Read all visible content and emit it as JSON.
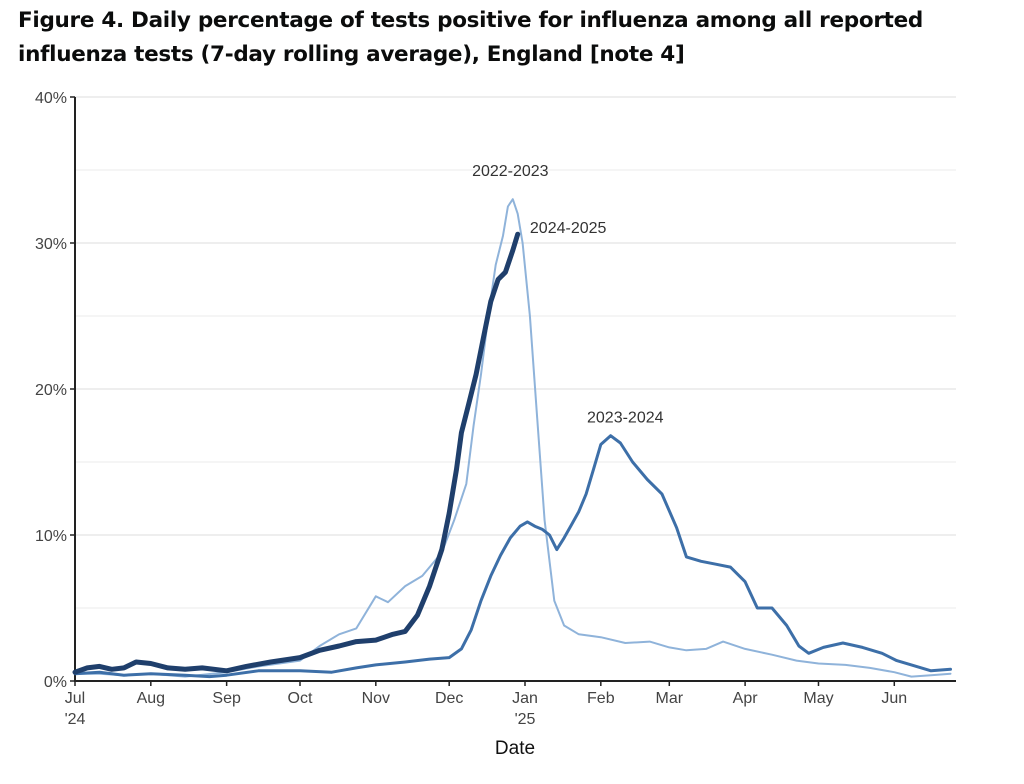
{
  "title": "Figure 4. Daily percentage of tests positive for influenza among all reported influenza tests (7-day rolling average), England [note 4]",
  "chart_data": {
    "type": "line",
    "title": "Figure 4. Daily percentage of tests positive for influenza among all reported influenza tests (7-day rolling average), England [note 4]",
    "xlabel": "Date",
    "ylabel": "",
    "x_unit": "day of season (0 = 1 July)",
    "xlim": [
      0,
      358
    ],
    "ylim": [
      0,
      40
    ],
    "grid": true,
    "legend": "direct labels on lines",
    "y_ticks": [
      {
        "value": 0,
        "label": "0%"
      },
      {
        "value": 10,
        "label": "10%"
      },
      {
        "value": 20,
        "label": "20%"
      },
      {
        "value": 30,
        "label": "30%"
      },
      {
        "value": 40,
        "label": "40%"
      }
    ],
    "y_minor_grid": [
      5,
      15,
      25,
      35
    ],
    "x_ticks": [
      {
        "value": 0,
        "label": "Jul",
        "sub": "'24"
      },
      {
        "value": 31,
        "label": "Aug",
        "sub": ""
      },
      {
        "value": 62,
        "label": "Sep",
        "sub": ""
      },
      {
        "value": 92,
        "label": "Oct",
        "sub": ""
      },
      {
        "value": 123,
        "label": "Nov",
        "sub": ""
      },
      {
        "value": 153,
        "label": "Dec",
        "sub": ""
      },
      {
        "value": 184,
        "label": "Jan",
        "sub": "'25"
      },
      {
        "value": 215,
        "label": "Feb",
        "sub": ""
      },
      {
        "value": 243,
        "label": "Mar",
        "sub": ""
      },
      {
        "value": 274,
        "label": "Apr",
        "sub": ""
      },
      {
        "value": 304,
        "label": "May",
        "sub": ""
      },
      {
        "value": 335,
        "label": "Jun",
        "sub": ""
      }
    ],
    "series": [
      {
        "name": "2022-2023",
        "color": "#8fb3da",
        "label_at": {
          "x": 178,
          "y": 34.6
        },
        "x": [
          0,
          10,
          20,
          31,
          45,
          62,
          75,
          92,
          100,
          108,
          115,
          123,
          128,
          135,
          142,
          150,
          155,
          160,
          163,
          166,
          169,
          172,
          175,
          177,
          179,
          181,
          183,
          186,
          189,
          192,
          196,
          200,
          206,
          215,
          225,
          235,
          243,
          250,
          258,
          265,
          274,
          285,
          295,
          304,
          315,
          325,
          335,
          342,
          350,
          358
        ],
        "values": [
          0.5,
          0.5,
          0.4,
          0.5,
          0.3,
          0.6,
          1.0,
          1.4,
          2.4,
          3.2,
          3.6,
          5.8,
          5.4,
          6.5,
          7.2,
          8.8,
          11.0,
          13.5,
          17.5,
          21.0,
          25.0,
          28.5,
          30.5,
          32.5,
          33.0,
          32.0,
          30.0,
          25.0,
          18.0,
          11.0,
          5.5,
          3.8,
          3.2,
          3.0,
          2.6,
          2.7,
          2.3,
          2.1,
          2.2,
          2.7,
          2.2,
          1.8,
          1.4,
          1.2,
          1.1,
          0.9,
          0.6,
          0.3,
          0.4,
          0.5
        ]
      },
      {
        "name": "2023-2024",
        "color": "#3d6fa8",
        "label_at": {
          "x": 225,
          "y": 17.7
        },
        "x": [
          0,
          10,
          20,
          31,
          45,
          55,
          62,
          75,
          92,
          105,
          115,
          123,
          135,
          145,
          153,
          158,
          162,
          166,
          170,
          174,
          178,
          182,
          185,
          188,
          191,
          194,
          197,
          200,
          203,
          206,
          209,
          212,
          215,
          219,
          223,
          228,
          234,
          240,
          246,
          250,
          256,
          262,
          268,
          274,
          279,
          285,
          291,
          296,
          300,
          306,
          314,
          322,
          330,
          336,
          342,
          350,
          358
        ],
        "values": [
          0.5,
          0.6,
          0.4,
          0.5,
          0.4,
          0.3,
          0.4,
          0.7,
          0.7,
          0.6,
          0.9,
          1.1,
          1.3,
          1.5,
          1.6,
          2.2,
          3.5,
          5.5,
          7.2,
          8.6,
          9.8,
          10.6,
          10.9,
          10.6,
          10.4,
          10.0,
          9.0,
          9.8,
          10.7,
          11.6,
          12.8,
          14.5,
          16.2,
          16.8,
          16.3,
          15.0,
          13.8,
          12.8,
          10.5,
          8.5,
          8.2,
          8.0,
          7.8,
          6.8,
          5.0,
          5.0,
          3.8,
          2.4,
          1.9,
          2.3,
          2.6,
          2.3,
          1.9,
          1.4,
          1.1,
          0.7,
          0.8
        ]
      },
      {
        "name": "2024-2025",
        "color": "#1f3f6c",
        "label_at": {
          "x": 186,
          "y": 30.7
        },
        "x": [
          0,
          5,
          10,
          15,
          20,
          25,
          31,
          38,
          45,
          52,
          62,
          70,
          80,
          92,
          100,
          108,
          115,
          123,
          130,
          135,
          140,
          145,
          150,
          153,
          156,
          158,
          161,
          164,
          167,
          170,
          173,
          176,
          179,
          181
        ],
        "values": [
          0.6,
          0.9,
          1.0,
          0.8,
          0.9,
          1.3,
          1.2,
          0.9,
          0.8,
          0.9,
          0.7,
          1.0,
          1.3,
          1.6,
          2.1,
          2.4,
          2.7,
          2.8,
          3.2,
          3.4,
          4.5,
          6.5,
          9.0,
          11.5,
          14.5,
          17.0,
          19.0,
          21.0,
          23.5,
          26.0,
          27.5,
          28.0,
          29.5,
          30.6
        ]
      }
    ]
  }
}
